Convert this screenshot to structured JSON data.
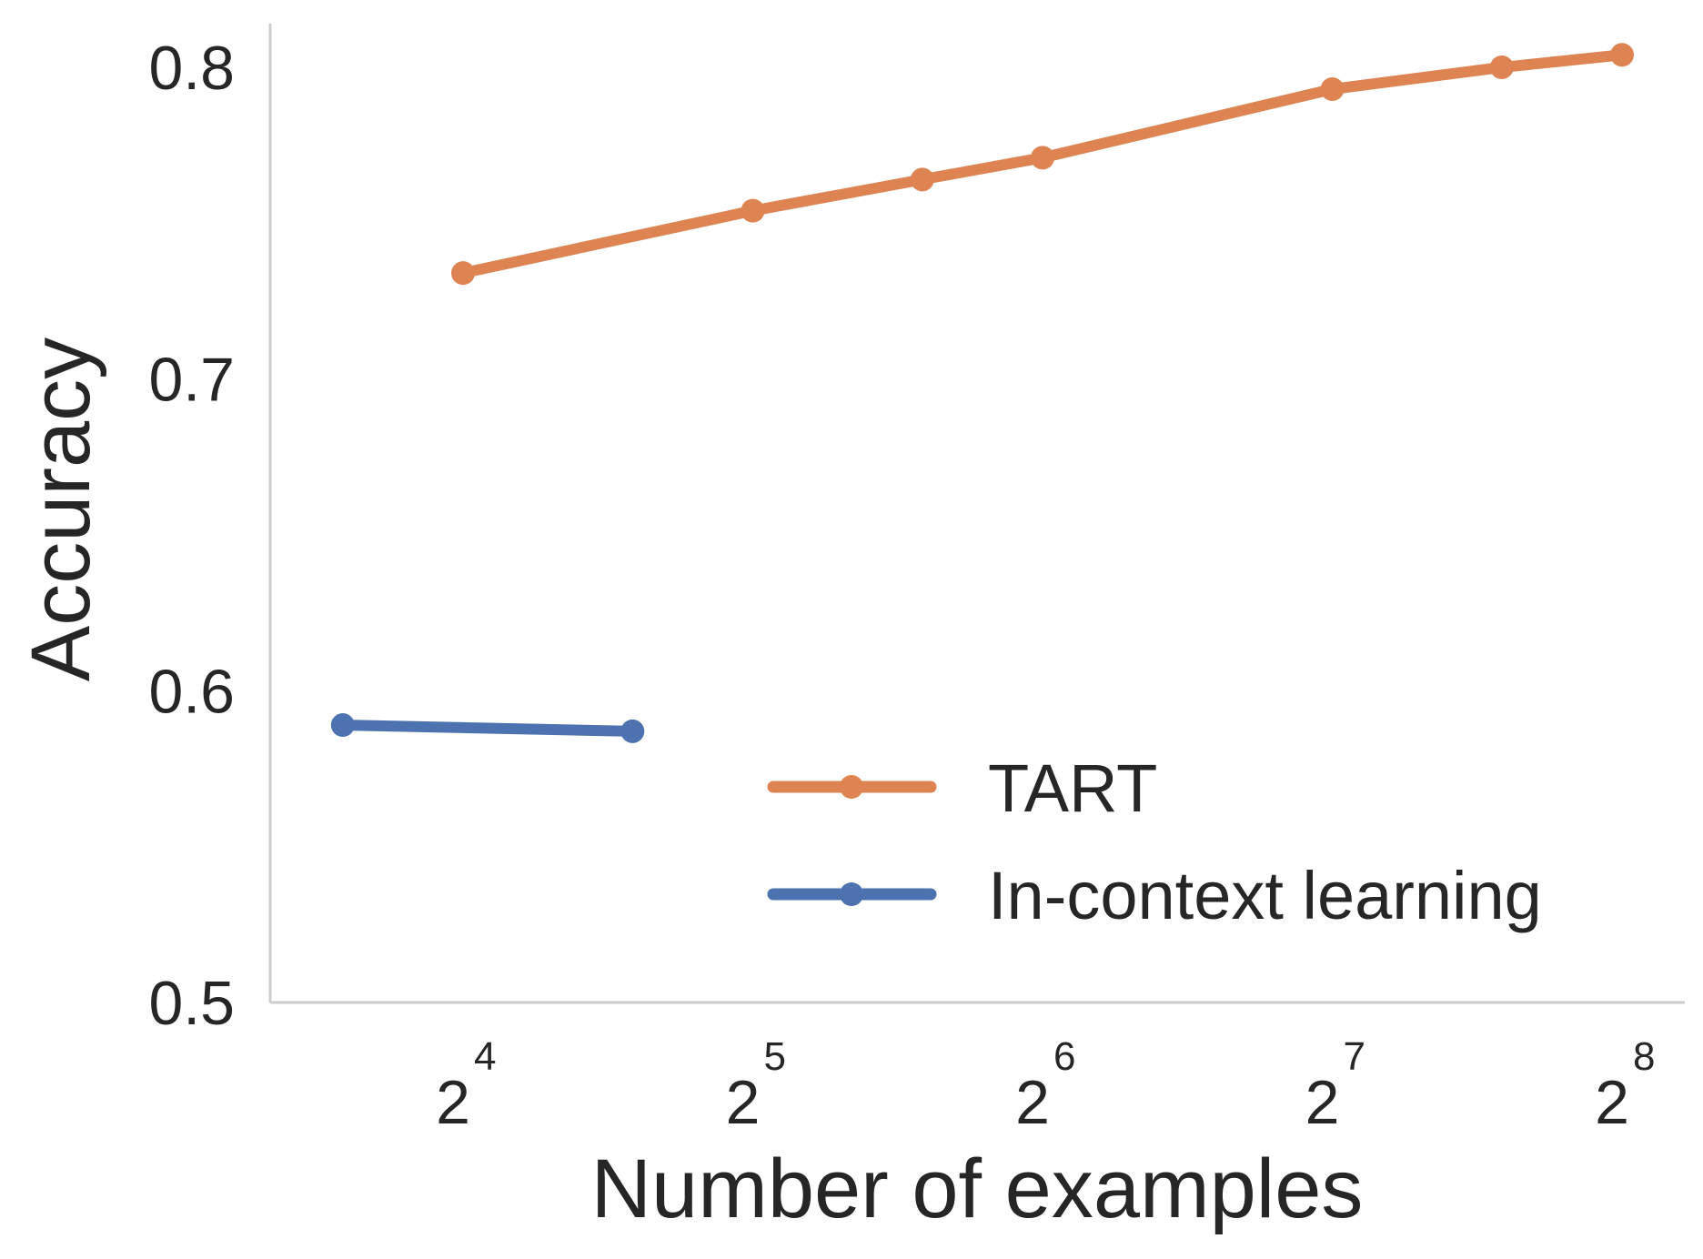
{
  "chart_data": {
    "type": "line",
    "title": "",
    "xlabel": "Number of examples",
    "ylabel": "Accuracy",
    "x_scale": "log2",
    "xlim": [
      11,
      270
    ],
    "ylim": [
      0.5,
      0.81
    ],
    "x_ticks": [
      {
        "value": 16,
        "base": "2",
        "exp": "4"
      },
      {
        "value": 32,
        "base": "2",
        "exp": "5"
      },
      {
        "value": 64,
        "base": "2",
        "exp": "6"
      },
      {
        "value": 128,
        "base": "2",
        "exp": "7"
      },
      {
        "value": 256,
        "base": "2",
        "exp": "8"
      }
    ],
    "y_ticks": [
      {
        "value": 0.5,
        "label": "0.5"
      },
      {
        "value": 0.6,
        "label": "0.6"
      },
      {
        "value": 0.7,
        "label": "0.7"
      },
      {
        "value": 0.8,
        "label": "0.8"
      }
    ],
    "grid": false,
    "legend": "lower-right",
    "series": [
      {
        "name": "TART",
        "color": "#dd8452",
        "x": [
          16,
          32,
          48,
          64,
          128,
          192,
          256
        ],
        "y": [
          0.734,
          0.754,
          0.764,
          0.771,
          0.793,
          0.8,
          0.804
        ]
      },
      {
        "name": "In-context learning",
        "color": "#4c72b0",
        "x": [
          12,
          24
        ],
        "y": [
          0.589,
          0.587
        ]
      }
    ]
  }
}
